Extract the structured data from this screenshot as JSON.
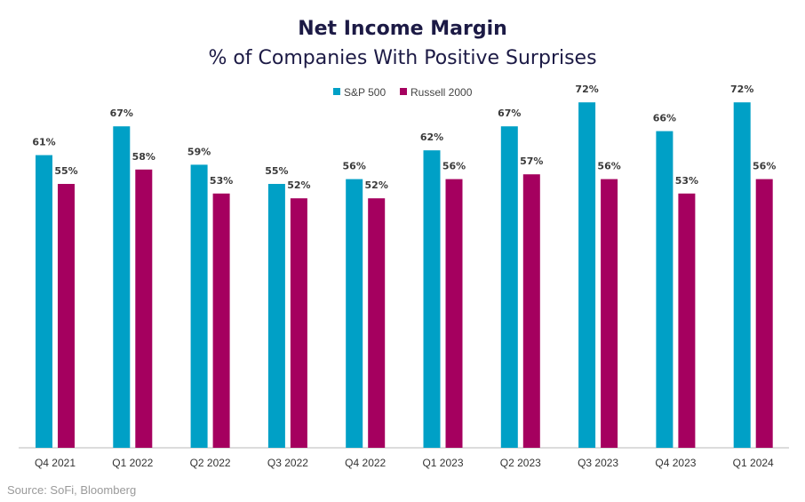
{
  "chart_data": {
    "type": "bar",
    "title": "Net Income Margin",
    "subtitle": "% of Companies With Positive Surprises",
    "categories": [
      "Q4 2021",
      "Q1 2022",
      "Q2 2022",
      "Q3 2022",
      "Q4 2022",
      "Q1 2023",
      "Q2 2023",
      "Q3 2023",
      "Q4 2023",
      "Q1 2024"
    ],
    "series": [
      {
        "name": "S&P 500",
        "color": "#00a0c6",
        "values": [
          61,
          67,
          59,
          55,
          56,
          62,
          67,
          72,
          66,
          72
        ],
        "labels": [
          "61%",
          "67%",
          "59%",
          "55%",
          "56%",
          "62%",
          "67%",
          "72%",
          "66%",
          "72%"
        ]
      },
      {
        "name": "Russell 2000",
        "color": "#a5005f",
        "values": [
          55,
          58,
          53,
          52,
          52,
          56,
          57,
          56,
          53,
          56
        ],
        "labels": [
          "55%",
          "58%",
          "53%",
          "52%",
          "52%",
          "56%",
          "57%",
          "56%",
          "53%",
          "56%"
        ]
      }
    ],
    "ylim": [
      0,
      100
    ],
    "grid": false,
    "legend_position": "top-center",
    "xlabel": "",
    "ylabel": ""
  },
  "source": "Source: SoFi, Bloomberg"
}
